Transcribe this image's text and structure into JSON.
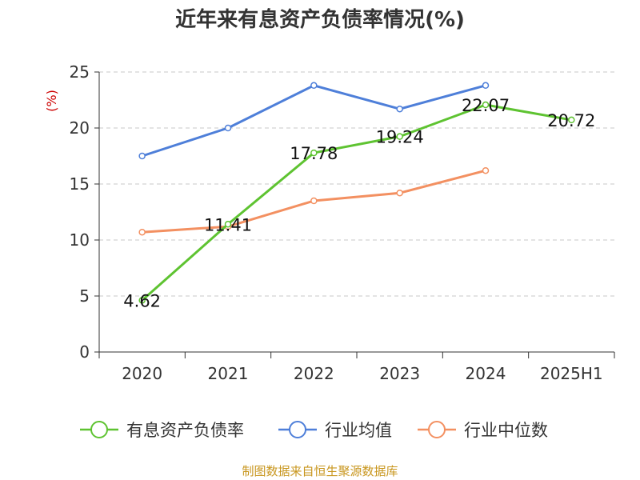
{
  "chart_data": {
    "type": "line",
    "title": "近年来有息资产负债率情况(%)",
    "ylabel": "(%)",
    "xlabel": "",
    "categories": [
      "2020",
      "2021",
      "2022",
      "2023",
      "2024",
      "2025H1"
    ],
    "ylim": [
      0,
      25
    ],
    "yticks": [
      "0",
      "5",
      "10",
      "15",
      "20",
      "25"
    ],
    "grid": "horizontal-dashed",
    "legend_position": "bottom",
    "series": [
      {
        "name": "有息资产负债率",
        "color": "#5ec331",
        "values": [
          4.62,
          11.41,
          17.78,
          19.24,
          22.07,
          20.72
        ],
        "data_labels": [
          "4.62",
          "11.41",
          "17.78",
          "19.24",
          "22.07",
          "20.72"
        ]
      },
      {
        "name": "行业均值",
        "color": "#4e7fd9",
        "values": [
          17.5,
          20.0,
          23.8,
          21.7,
          23.8,
          null
        ]
      },
      {
        "name": "行业中位数",
        "color": "#f39061",
        "values": [
          10.7,
          11.2,
          13.5,
          14.2,
          16.2,
          null
        ]
      }
    ],
    "source": "制图数据来自恒生聚源数据库"
  }
}
